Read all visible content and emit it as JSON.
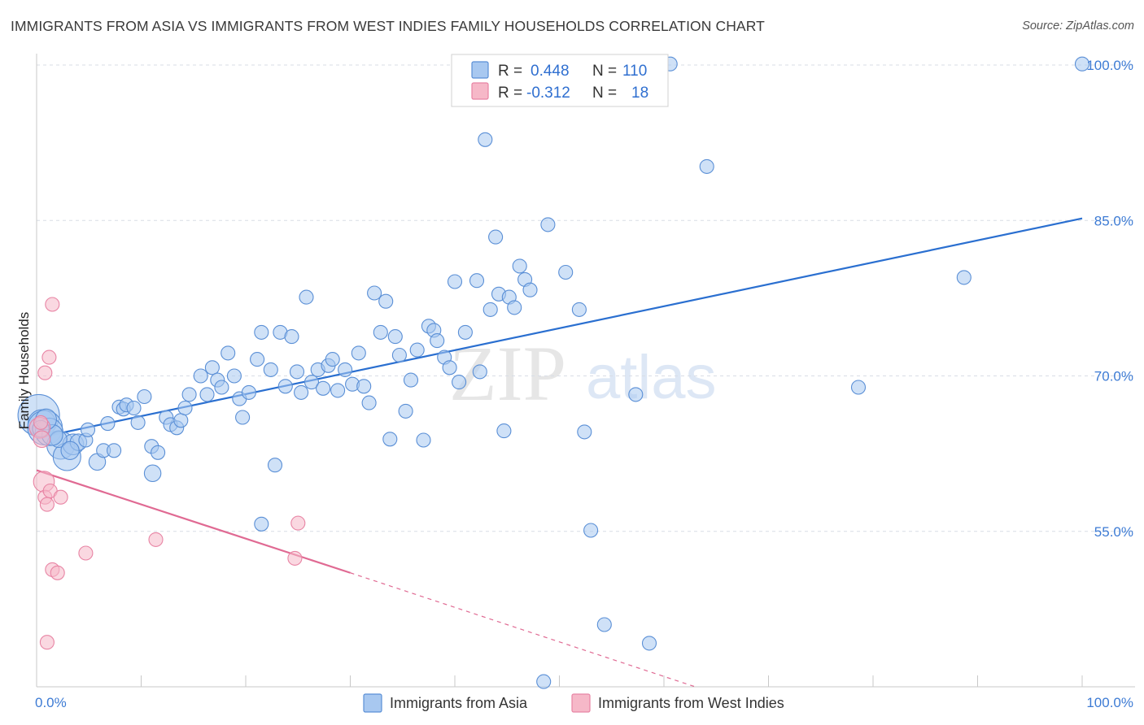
{
  "title": "IMMIGRANTS FROM ASIA VS IMMIGRANTS FROM WEST INDIES FAMILY HOUSEHOLDS CORRELATION CHART",
  "source": "Source: ZipAtlas.com",
  "watermark": {
    "zip": "ZIP",
    "atlas": "atlas"
  },
  "colors": {
    "asia_fill": "#a8c8f0",
    "asia_stroke": "#5a8fd6",
    "asia_line": "#2a6fd0",
    "wi_fill": "#f6b8c8",
    "wi_stroke": "#e884a4",
    "wi_line": "#e06a93",
    "tick_text": "#3d7bd4",
    "grid": "#d8dde6"
  },
  "legend": {
    "rows": [
      {
        "r_label": "R = ",
        "r_value": "0.448",
        "n_label": "N = ",
        "n_value": "110"
      },
      {
        "r_label": "R = ",
        "r_value": "-0.312",
        "n_label": "N = ",
        "n_value": "18"
      }
    ]
  },
  "chart_data": {
    "type": "scatter",
    "xlabel": "",
    "ylabel": "Family Households",
    "xlim": [
      0,
      100
    ],
    "ylim": [
      40,
      102
    ],
    "x_tick_labels": [
      "0.0%",
      "100.0%"
    ],
    "y_ticks": [
      55,
      70,
      85,
      100
    ],
    "y_tick_labels": [
      "55.0%",
      "70.0%",
      "85.0%",
      "100.0%"
    ],
    "grid": "horizontal dashed",
    "legend_position": "top-center",
    "series": [
      {
        "name": "Immigrants from Asia",
        "trend": {
          "x0": 0,
          "y0": 64.0,
          "x1": 100,
          "y1": 85.2,
          "style": "solid"
        },
        "points": [
          [
            0.2,
            66.2,
            3
          ],
          [
            0.5,
            65.4,
            2
          ],
          [
            0.8,
            65.0,
            2.5
          ],
          [
            1.2,
            64.6,
            2
          ],
          [
            2.3,
            63.3,
            2
          ],
          [
            2.9,
            62.2,
            2
          ],
          [
            3.5,
            63.4,
            1.5
          ],
          [
            4.0,
            63.6,
            1.2
          ],
          [
            4.7,
            63.8,
            1
          ],
          [
            4.9,
            64.8,
            1
          ],
          [
            5.8,
            61.7,
            1.2
          ],
          [
            6.4,
            62.8,
            1
          ],
          [
            7.4,
            62.8,
            1
          ],
          [
            6.8,
            65.4,
            1
          ],
          [
            7.9,
            67.0,
            1
          ],
          [
            8.3,
            66.8,
            1
          ],
          [
            8.6,
            67.2,
            1
          ],
          [
            9.3,
            66.9,
            1
          ],
          [
            9.7,
            65.5,
            1
          ],
          [
            10.3,
            68.0,
            1
          ],
          [
            11.0,
            63.2,
            1
          ],
          [
            11.6,
            62.6,
            1
          ],
          [
            11.1,
            60.6,
            1.2
          ],
          [
            12.4,
            66.0,
            1
          ],
          [
            12.8,
            65.3,
            1
          ],
          [
            13.4,
            65.0,
            1
          ],
          [
            13.8,
            65.7,
            1
          ],
          [
            14.2,
            66.9,
            1
          ],
          [
            14.6,
            68.2,
            1
          ],
          [
            15.7,
            70.0,
            1
          ],
          [
            16.3,
            68.2,
            1
          ],
          [
            16.8,
            70.8,
            1
          ],
          [
            17.3,
            69.6,
            1
          ],
          [
            17.7,
            68.9,
            1
          ],
          [
            18.3,
            72.2,
            1
          ],
          [
            18.9,
            70.0,
            1
          ],
          [
            19.4,
            67.8,
            1
          ],
          [
            19.7,
            66.0,
            1
          ],
          [
            20.3,
            68.4,
            1
          ],
          [
            21.1,
            71.6,
            1
          ],
          [
            21.5,
            74.2,
            1
          ],
          [
            22.4,
            70.6,
            1
          ],
          [
            22.8,
            61.4,
            1
          ],
          [
            23.3,
            74.2,
            1
          ],
          [
            23.8,
            69.0,
            1
          ],
          [
            24.4,
            73.8,
            1
          ],
          [
            24.9,
            70.4,
            1
          ],
          [
            25.3,
            68.4,
            1
          ],
          [
            25.8,
            77.6,
            1
          ],
          [
            26.3,
            69.4,
            1
          ],
          [
            26.9,
            70.6,
            1
          ],
          [
            27.4,
            68.8,
            1
          ],
          [
            27.9,
            71.0,
            1
          ],
          [
            28.3,
            71.6,
            1
          ],
          [
            28.8,
            68.6,
            1
          ],
          [
            29.5,
            70.6,
            1
          ],
          [
            30.2,
            69.2,
            1
          ],
          [
            30.8,
            72.2,
            1
          ],
          [
            31.3,
            69.0,
            1
          ],
          [
            31.8,
            67.4,
            1
          ],
          [
            32.3,
            78.0,
            1
          ],
          [
            32.9,
            74.2,
            1
          ],
          [
            33.4,
            77.2,
            1
          ],
          [
            33.8,
            63.9,
            1
          ],
          [
            34.3,
            73.8,
            1
          ],
          [
            34.7,
            72.0,
            1
          ],
          [
            35.3,
            66.6,
            1
          ],
          [
            35.8,
            69.6,
            1
          ],
          [
            36.4,
            72.5,
            1
          ],
          [
            37.0,
            63.8,
            1
          ],
          [
            37.5,
            74.8,
            1
          ],
          [
            38.0,
            74.4,
            1
          ],
          [
            38.3,
            73.4,
            1
          ],
          [
            39.0,
            71.8,
            1
          ],
          [
            39.5,
            70.8,
            1
          ],
          [
            40.0,
            79.1,
            1
          ],
          [
            40.4,
            69.4,
            1
          ],
          [
            41.0,
            74.2,
            1
          ],
          [
            42.1,
            79.2,
            1
          ],
          [
            42.4,
            70.4,
            1
          ],
          [
            42.9,
            92.8,
            1
          ],
          [
            43.4,
            76.4,
            1
          ],
          [
            43.9,
            83.4,
            1
          ],
          [
            44.2,
            77.9,
            1
          ],
          [
            44.7,
            64.7,
            1
          ],
          [
            45.2,
            77.6,
            1
          ],
          [
            45.7,
            76.6,
            1
          ],
          [
            46.2,
            80.6,
            1
          ],
          [
            46.7,
            79.3,
            1
          ],
          [
            47.2,
            78.3,
            1
          ],
          [
            48.9,
            84.6,
            1
          ],
          [
            50.6,
            80.0,
            1
          ],
          [
            51.9,
            76.4,
            1
          ],
          [
            52.4,
            64.6,
            1
          ],
          [
            53.0,
            55.1,
            1
          ],
          [
            54.3,
            46.0,
            1
          ],
          [
            57.3,
            68.2,
            1
          ],
          [
            58.6,
            44.2,
            1
          ],
          [
            60.6,
            100.1,
            1
          ],
          [
            64.1,
            90.2,
            1
          ],
          [
            78.6,
            68.9,
            1
          ],
          [
            88.7,
            79.5,
            1
          ],
          [
            100.0,
            100.1,
            1
          ],
          [
            48.5,
            40.5,
            1
          ],
          [
            21.5,
            55.7,
            1
          ],
          [
            2.1,
            63.9,
            1.2
          ],
          [
            1.5,
            64.3,
            1.5
          ],
          [
            3.2,
            62.8,
            1.3
          ],
          [
            0.9,
            65.8,
            1.5
          ],
          [
            0.4,
            64.9,
            1.2
          ]
        ]
      },
      {
        "name": "Immigrants from West Indies",
        "trend": {
          "x0": 0,
          "y0": 60.9,
          "x1": 30.0,
          "y1": 51.0,
          "dash_x1": 63.0,
          "dash_y1": 40.0
        },
        "points": [
          [
            0.3,
            65.0,
            1.5
          ],
          [
            0.5,
            63.9,
            1.2
          ],
          [
            0.7,
            59.8,
            1.5
          ],
          [
            0.8,
            58.3,
            1
          ],
          [
            1.0,
            57.6,
            1
          ],
          [
            1.3,
            58.9,
            1
          ],
          [
            1.2,
            71.8,
            1
          ],
          [
            0.8,
            70.3,
            1
          ],
          [
            1.5,
            76.9,
            1
          ],
          [
            2.3,
            58.3,
            1
          ],
          [
            1.5,
            51.3,
            1
          ],
          [
            2.0,
            51.0,
            1
          ],
          [
            4.7,
            52.9,
            1
          ],
          [
            11.4,
            54.2,
            1
          ],
          [
            25.0,
            55.8,
            1
          ],
          [
            24.7,
            52.4,
            1
          ],
          [
            1.0,
            44.3,
            1
          ],
          [
            0.4,
            65.5,
            1
          ]
        ]
      }
    ]
  }
}
